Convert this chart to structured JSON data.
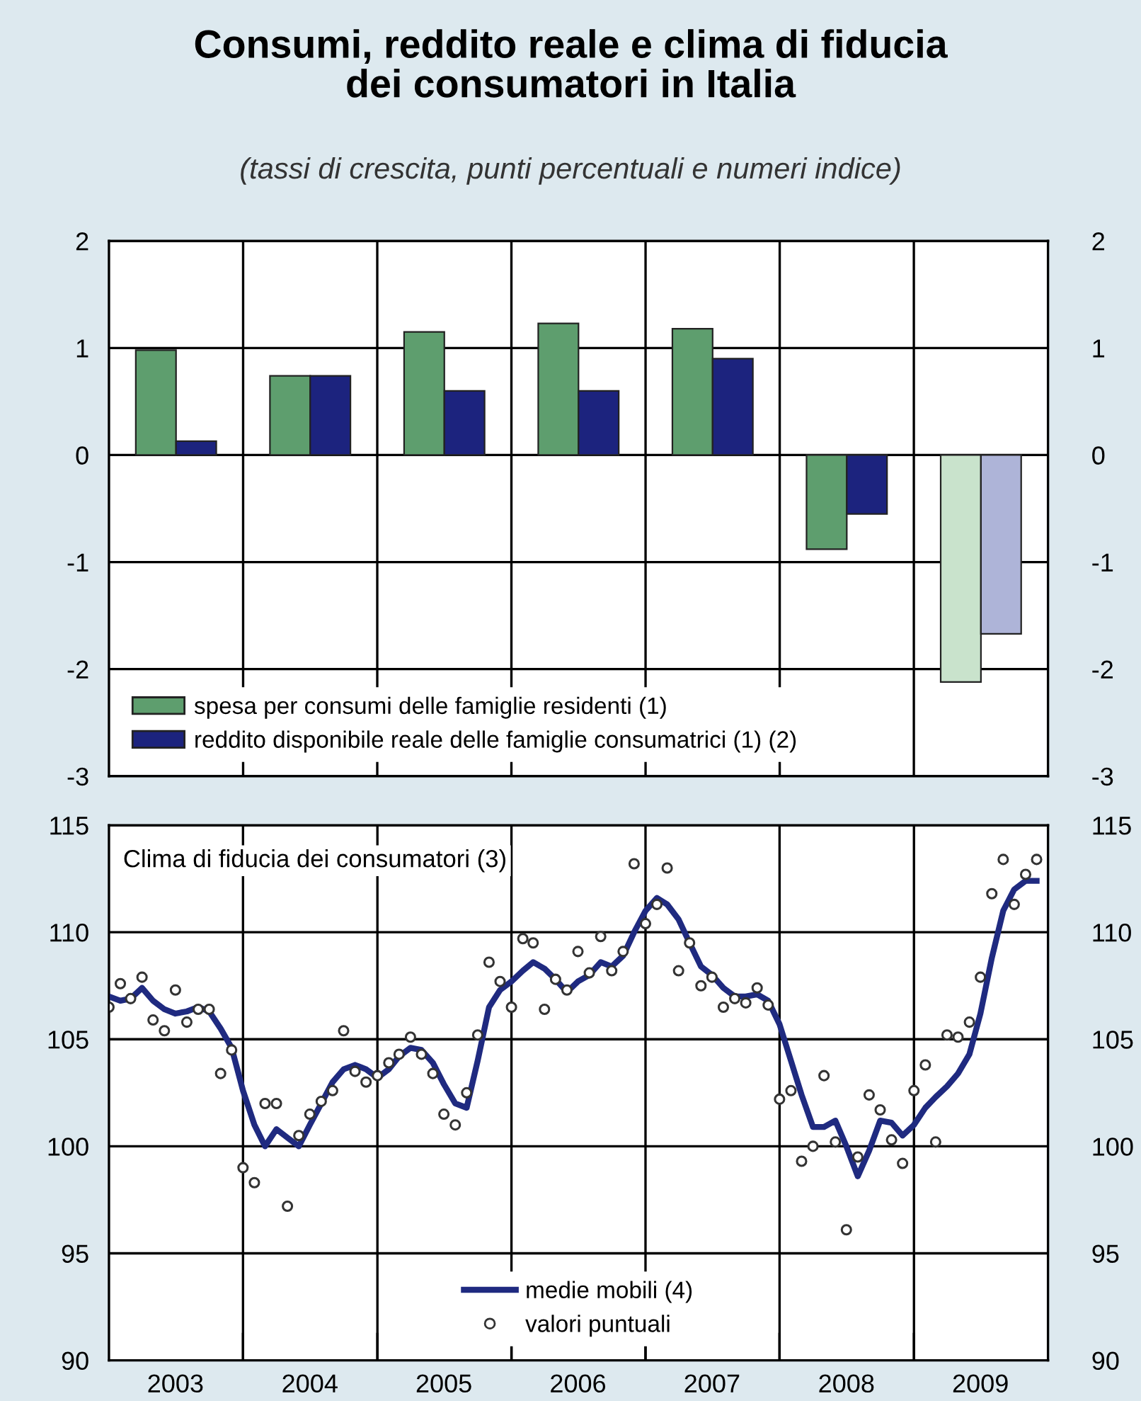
{
  "chart_data": [
    {
      "type": "bar",
      "title": "Consumi, reddito reale e clima di fiducia\ndei consumatori in Italia",
      "subtitle": "(tassi di crescita, punti percentuali e numeri indice)",
      "categories": [
        "2003",
        "2004",
        "2005",
        "2006",
        "2007",
        "2008",
        "2009"
      ],
      "series": [
        {
          "name": "spesa per consumi delle famiglie residenti (1)",
          "color": "#5e9e6e",
          "colors": [
            "#5e9e6e",
            "#5e9e6e",
            "#5e9e6e",
            "#5e9e6e",
            "#5e9e6e",
            "#5e9e6e",
            "#c9e3cc"
          ],
          "values": [
            0.98,
            0.74,
            1.15,
            1.23,
            1.18,
            -0.88,
            -2.12
          ]
        },
        {
          "name": "reddito disponibile reale delle famiglie consumatrici (1) (2)",
          "color": "#1c237e",
          "colors": [
            "#1c237e",
            "#1c237e",
            "#1c237e",
            "#1c237e",
            "#1c237e",
            "#1c237e",
            "#aeb4d8"
          ],
          "values": [
            0.13,
            0.74,
            0.6,
            0.6,
            0.9,
            -0.55,
            -1.67
          ]
        }
      ],
      "ylim": [
        -3,
        2
      ],
      "yticks": [
        -3,
        -2,
        -1,
        0,
        1,
        2
      ],
      "y2lim": [
        -3,
        2
      ],
      "y2ticks": [
        -3,
        -2,
        -1,
        0,
        1,
        2
      ],
      "tick_labels": "y",
      "grid": true,
      "legend": "bottom left"
    },
    {
      "type": "line",
      "title": "Clima di fiducia dei consumatori (3)",
      "x": [
        "2003-01",
        "2003-02",
        "2003-03",
        "2003-04",
        "2003-05",
        "2003-06",
        "2003-07",
        "2003-08",
        "2003-09",
        "2003-10",
        "2003-11",
        "2003-12",
        "2004-01",
        "2004-02",
        "2004-03",
        "2004-04",
        "2004-05",
        "2004-06",
        "2004-07",
        "2004-08",
        "2004-09",
        "2004-10",
        "2004-11",
        "2004-12",
        "2005-01",
        "2005-02",
        "2005-03",
        "2005-04",
        "2005-05",
        "2005-06",
        "2005-07",
        "2005-08",
        "2005-09",
        "2005-10",
        "2005-11",
        "2005-12",
        "2006-01",
        "2006-02",
        "2006-03",
        "2006-04",
        "2006-05",
        "2006-06",
        "2006-07",
        "2006-08",
        "2006-09",
        "2006-10",
        "2006-11",
        "2006-12",
        "2007-01",
        "2007-02",
        "2007-03",
        "2007-04",
        "2007-05",
        "2007-06",
        "2007-07",
        "2007-08",
        "2007-09",
        "2007-10",
        "2007-11",
        "2007-12",
        "2008-01",
        "2008-02",
        "2008-03",
        "2008-04",
        "2008-05",
        "2008-06",
        "2008-07",
        "2008-08",
        "2008-09",
        "2008-10",
        "2008-11",
        "2008-12",
        "2009-01",
        "2009-02",
        "2009-03",
        "2009-04",
        "2009-05",
        "2009-06",
        "2009-07",
        "2009-08",
        "2009-09",
        "2009-10",
        "2009-11",
        "2009-12"
      ],
      "series": [
        {
          "name": "medie mobili (4)",
          "type": "line",
          "color": "#1f2a80",
          "marker": "none",
          "values": [
            107.0,
            106.8,
            106.9,
            107.4,
            106.8,
            106.4,
            106.2,
            106.3,
            106.5,
            106.3,
            105.5,
            104.6,
            102.6,
            101.0,
            100.0,
            100.8,
            100.4,
            100.0,
            101.0,
            102.0,
            103.0,
            103.6,
            103.8,
            103.6,
            103.2,
            103.6,
            104.2,
            104.6,
            104.5,
            103.9,
            102.9,
            102.0,
            101.8,
            104.0,
            106.5,
            107.3,
            107.7,
            108.2,
            108.6,
            108.3,
            107.8,
            107.2,
            107.7,
            108.0,
            108.6,
            108.4,
            108.9,
            110.0,
            111.0,
            111.6,
            111.3,
            110.6,
            109.5,
            108.4,
            108.0,
            107.4,
            107.0,
            107.0,
            107.1,
            106.8,
            105.7,
            104.0,
            102.4,
            100.9,
            100.9,
            101.2,
            100.0,
            98.6,
            99.8,
            101.2,
            101.1,
            100.5,
            101.0,
            101.8,
            102.3,
            102.8,
            103.4,
            104.3,
            106.2,
            108.8,
            111.0,
            112.0,
            112.4,
            112.4
          ]
        },
        {
          "name": "valori puntuali",
          "type": "scatter",
          "color": "#333333",
          "marker": "circle",
          "values": [
            106.5,
            107.6,
            106.9,
            107.9,
            105.9,
            105.4,
            107.3,
            105.8,
            106.4,
            106.4,
            103.4,
            104.5,
            99.0,
            98.3,
            102.0,
            102.0,
            97.2,
            100.5,
            101.5,
            102.1,
            102.6,
            105.4,
            103.5,
            103.0,
            103.3,
            103.9,
            104.3,
            105.1,
            104.3,
            103.4,
            101.5,
            101.0,
            102.5,
            105.2,
            108.6,
            107.7,
            106.5,
            109.7,
            109.5,
            106.4,
            107.8,
            107.3,
            109.1,
            108.1,
            109.8,
            108.2,
            109.1,
            113.2,
            110.4,
            111.3,
            113.0,
            108.2,
            109.5,
            107.5,
            107.9,
            106.5,
            106.9,
            106.7,
            107.4,
            106.6,
            102.2,
            102.6,
            99.3,
            100.0,
            103.3,
            100.2,
            96.1,
            99.5,
            102.4,
            101.7,
            100.3,
            99.2,
            102.6,
            103.8,
            100.2,
            105.2,
            105.1,
            105.8,
            107.9,
            111.8,
            113.4,
            111.3,
            112.7,
            113.4
          ]
        }
      ],
      "xlim": [
        "2003-01-01",
        "2010-01-01"
      ],
      "xticks": [
        {
          "value": "2004-01-01",
          "label": null
        },
        {
          "value": "2005-01-01",
          "label": null
        },
        {
          "value": "2006-01-01",
          "label": null
        },
        {
          "value": "2007-01-01",
          "label": null
        },
        {
          "value": "2008-01-01",
          "label": null
        },
        {
          "value": "2009-01-01",
          "label": null
        },
        {
          "value": "2003-07-01",
          "label": "2003"
        },
        {
          "value": "2004-07-01",
          "label": "2004"
        },
        {
          "value": "2005-07-01",
          "label": "2005"
        },
        {
          "value": "2006-07-01",
          "label": "2006"
        },
        {
          "value": "2007-07-01",
          "label": "2007"
        },
        {
          "value": "2008-07-01",
          "label": "2008"
        },
        {
          "value": "2009-07-01",
          "label": "2009"
        }
      ],
      "ylim": [
        90,
        115
      ],
      "yticks": [
        90,
        95,
        100,
        105,
        110,
        115
      ],
      "y2lim": [
        90,
        115
      ],
      "y2ticks": [
        90,
        95,
        100,
        105,
        110,
        115
      ],
      "grid": true,
      "legend": "bottom"
    }
  ]
}
